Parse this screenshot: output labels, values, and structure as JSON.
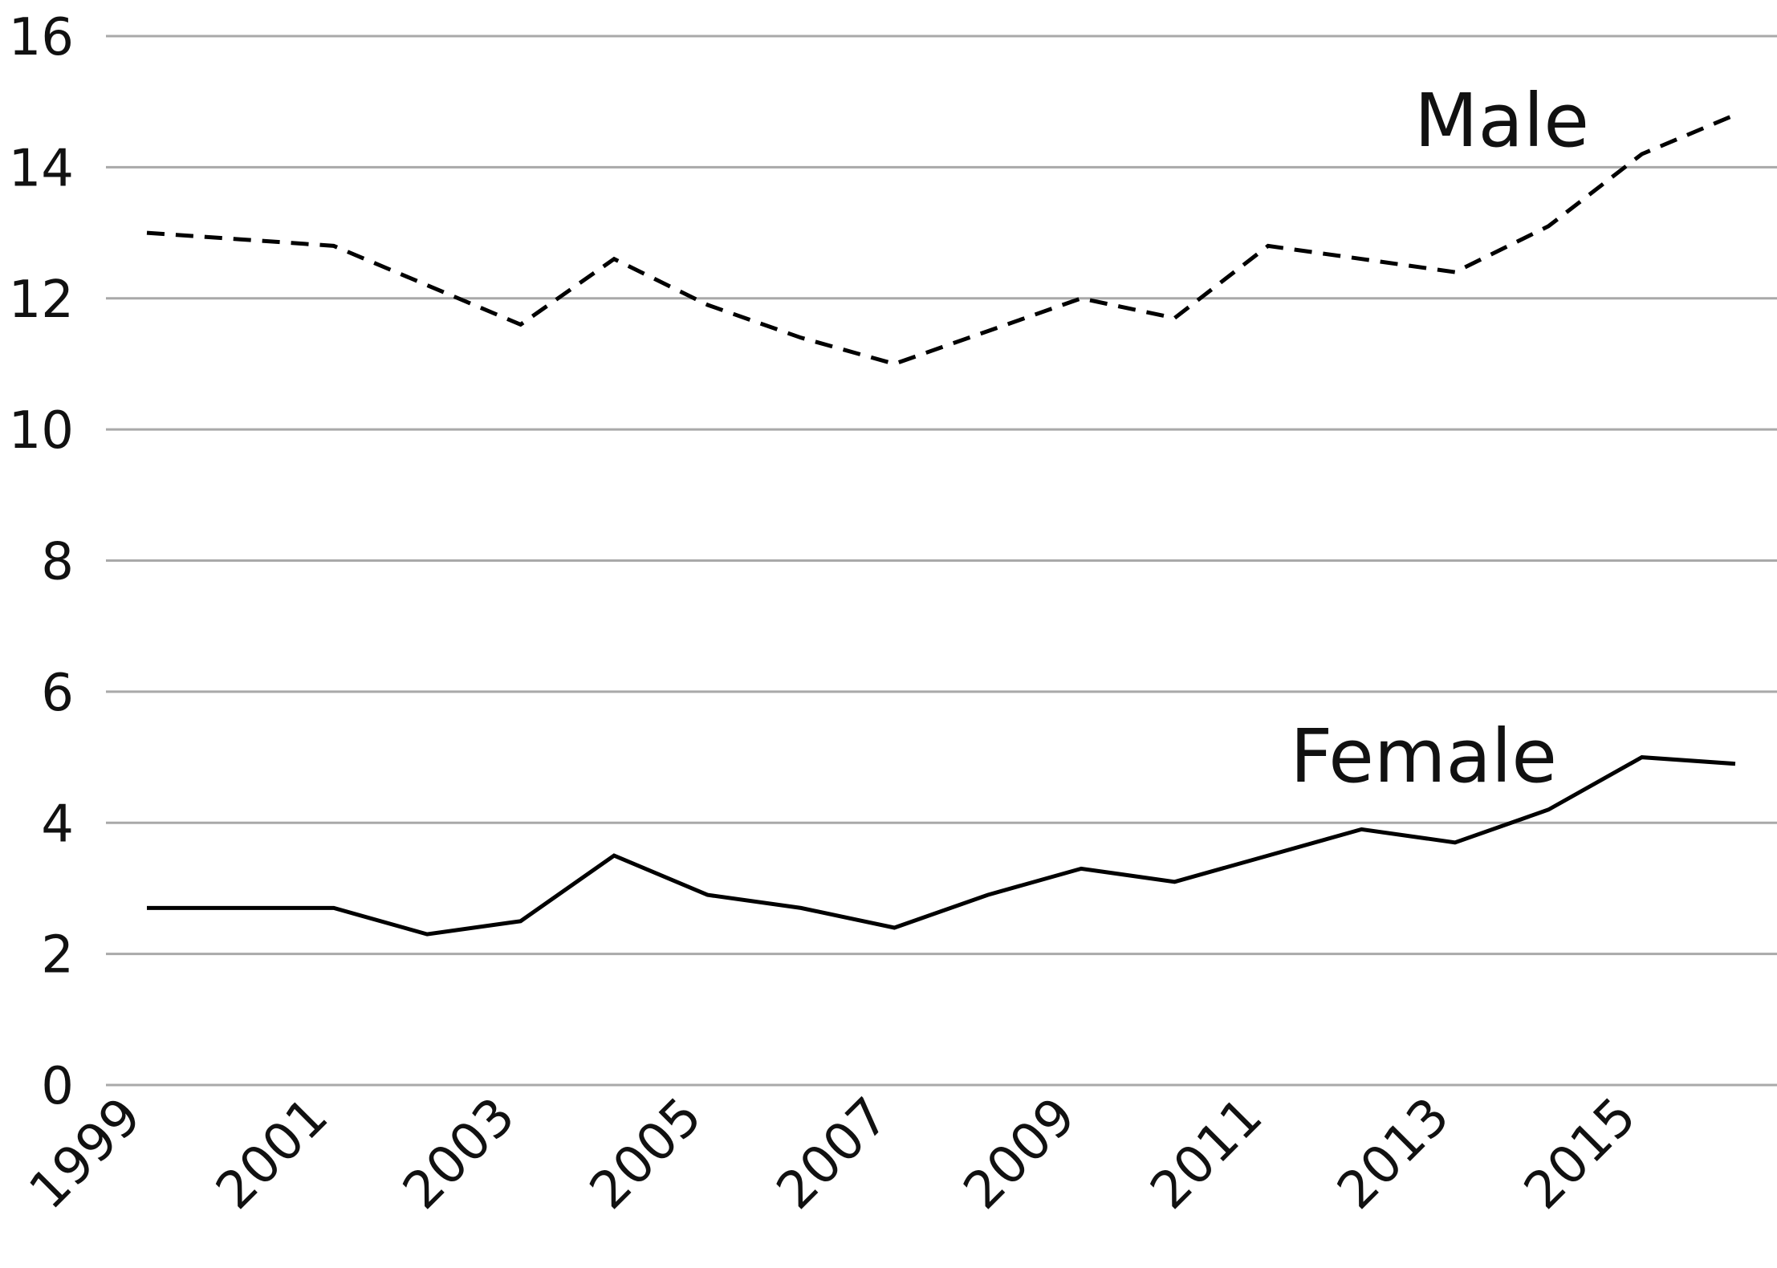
{
  "chart_data": {
    "type": "line",
    "title": "",
    "xlabel": "",
    "ylabel": "",
    "x": [
      1999,
      2000,
      2001,
      2002,
      2003,
      2004,
      2005,
      2006,
      2007,
      2008,
      2009,
      2010,
      2011,
      2012,
      2013,
      2014,
      2015,
      2016
    ],
    "x_tick_labels": [
      "1999",
      "2001",
      "2003",
      "2005",
      "2007",
      "2009",
      "2011",
      "2013",
      "2015"
    ],
    "y_ticks": [
      0,
      2,
      4,
      6,
      8,
      10,
      12,
      14,
      16
    ],
    "ylim": [
      0,
      16
    ],
    "grid": true,
    "legend": "inline labels",
    "series": [
      {
        "name": "Male",
        "style": "dashed",
        "color": "#000000",
        "values": [
          13.0,
          12.9,
          12.8,
          12.2,
          11.6,
          12.6,
          11.9,
          11.4,
          11.0,
          11.5,
          12.0,
          11.7,
          12.8,
          12.6,
          12.4,
          13.1,
          14.2,
          14.8
        ]
      },
      {
        "name": "Female",
        "style": "solid",
        "color": "#000000",
        "values": [
          2.7,
          2.7,
          2.7,
          2.3,
          2.5,
          3.5,
          2.9,
          2.7,
          2.4,
          2.9,
          3.3,
          3.1,
          3.5,
          3.9,
          3.7,
          4.2,
          5.0,
          4.9
        ]
      }
    ]
  }
}
